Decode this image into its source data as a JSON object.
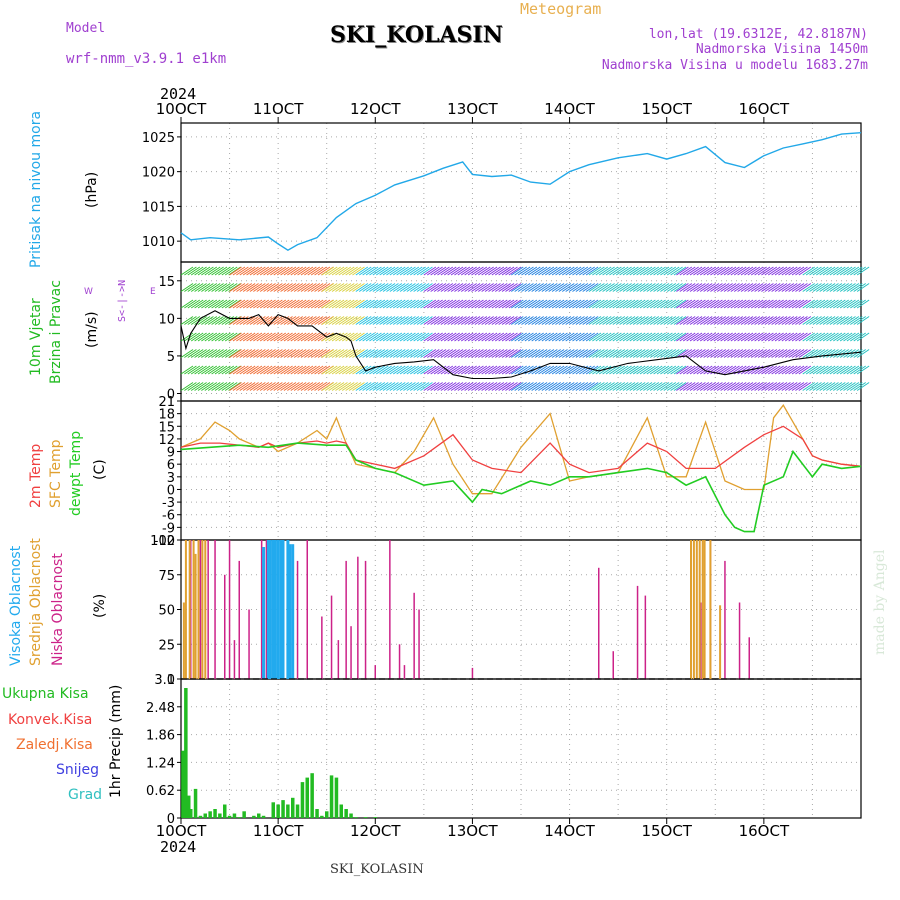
{
  "header": {
    "model_label": "Model",
    "model_name": "wrf-nmm_v3.9.1 e1km",
    "product": "Meteogram",
    "station": "SKI_KOLASIN",
    "lonlat": "lon,lat (19.6312E, 42.8187N)",
    "elevation": "Nadmorska Visina 1450m",
    "model_elevation": "Nadmorska Visina u modelu 1683.27m",
    "year_top": "2024",
    "year_bottom": "2024",
    "footer_station": "SKI_KOLASIN",
    "watermark": "made by Angel"
  },
  "colors": {
    "pressure": "#22a8e8",
    "wind_label": "#22bb22",
    "t2m": "#f04040",
    "sfc": "#e0a030",
    "dewpt": "#22cc22",
    "cloud_high": "#22aaee",
    "cloud_mid": "#e0a030",
    "cloud_low": "#cc2288",
    "precip_total": "#22bb22",
    "precip_conv": "#f04040",
    "precip_frz": "#f07030",
    "snow": "#4040e0",
    "graupel": "#30c0c0",
    "axis_purple": "#a040d0"
  },
  "panel_labels": {
    "pressure": {
      "name": "Pritisak na nivou mora",
      "unit": "(hPa)"
    },
    "wind": {
      "line1": "10m Vjetar",
      "line2": "Brzina i Pravac",
      "unit": "(m/s)",
      "compass_ns": "S<-|->N",
      "compass_w": "W",
      "compass_e": "E"
    },
    "temp": {
      "t2m": "2m Temp",
      "sfc": "SFC Temp",
      "dew": "dewpt Temp",
      "unit": "(C)"
    },
    "cloud": {
      "high": "Visoka Oblacnost",
      "mid": "Srednja Oblacnost",
      "low": "Niska Oblacnost",
      "unit": "(%)"
    },
    "precip": {
      "total": "Ukupna Kisa",
      "conv": "Konvek.Kisa",
      "frz": "Zaledj.Kisa",
      "snow": "Snijeg",
      "graupel": "Grad",
      "unit": "1hr Precip (mm)"
    }
  },
  "chart_data": [
    {
      "type": "line",
      "id": "pressure",
      "x_unit": "days from 10OCT 00z",
      "x_ticks": [
        "10OCT",
        "11OCT",
        "12OCT",
        "13OCT",
        "14OCT",
        "15OCT",
        "16OCT"
      ],
      "y_ticks": [
        1010,
        1015,
        1020,
        1025
      ],
      "ylim": [
        1007,
        1027
      ],
      "grid": true,
      "series": [
        {
          "name": "Pritisak na nivou mora",
          "x": [
            0,
            0.1,
            0.3,
            0.6,
            0.9,
            1.0,
            1.1,
            1.2,
            1.4,
            1.6,
            1.8,
            2.0,
            2.2,
            2.5,
            2.7,
            2.9,
            3.0,
            3.2,
            3.4,
            3.6,
            3.8,
            4.0,
            4.2,
            4.5,
            4.8,
            5.0,
            5.2,
            5.4,
            5.6,
            5.8,
            6.0,
            6.2,
            6.4,
            6.6,
            6.8,
            7.0
          ],
          "y": [
            1011.2,
            1010.2,
            1010.5,
            1010.2,
            1010.6,
            1009.6,
            1008.7,
            1009.5,
            1010.5,
            1013.4,
            1015.4,
            1016.6,
            1018.1,
            1019.4,
            1020.5,
            1021.4,
            1019.6,
            1019.3,
            1019.5,
            1018.5,
            1018.2,
            1020.0,
            1021.0,
            1022.0,
            1022.6,
            1021.8,
            1022.6,
            1023.6,
            1021.3,
            1020.6,
            1022.3,
            1023.4,
            1024.0,
            1024.6,
            1025.4,
            1025.6
          ]
        }
      ]
    },
    {
      "type": "line",
      "id": "wind",
      "y_ticks": [
        0,
        5,
        10,
        15
      ],
      "ylim": [
        -1,
        17.5
      ],
      "grid": true,
      "series": [
        {
          "name": "Brzina",
          "x": [
            0,
            0.05,
            0.1,
            0.2,
            0.35,
            0.5,
            0.7,
            0.8,
            0.9,
            1.0,
            1.1,
            1.2,
            1.35,
            1.5,
            1.6,
            1.7,
            1.75,
            1.8,
            1.9,
            2.0,
            2.2,
            2.4,
            2.6,
            2.8,
            3.0,
            3.2,
            3.4,
            3.6,
            3.8,
            4.0,
            4.3,
            4.6,
            4.9,
            5.2,
            5.4,
            5.6,
            5.8,
            6.0,
            6.3,
            6.6,
            7.0
          ],
          "y": [
            9,
            6,
            8,
            10,
            11,
            10,
            10,
            10.5,
            9,
            10.5,
            10,
            9,
            9,
            7.5,
            8,
            7.5,
            7,
            5,
            3,
            3.5,
            4,
            4.2,
            4.5,
            2.5,
            2,
            2,
            2.2,
            3,
            4,
            4,
            3,
            4,
            4.5,
            5,
            3,
            2.5,
            3,
            3.5,
            4.5,
            5,
            5.5
          ]
        }
      ],
      "barb_bands": [
        {
          "from": 0,
          "to": 0.5,
          "color": "#30c030"
        },
        {
          "from": 0.5,
          "to": 1.45,
          "color": "#f06a30"
        },
        {
          "from": 1.45,
          "to": 1.8,
          "color": "#d8d040"
        },
        {
          "from": 1.8,
          "to": 2.5,
          "color": "#20c0e0"
        },
        {
          "from": 2.5,
          "to": 3.4,
          "color": "#8030e0"
        },
        {
          "from": 3.4,
          "to": 4.2,
          "color": "#2080e0"
        },
        {
          "from": 4.2,
          "to": 5.1,
          "color": "#20c0c0"
        },
        {
          "from": 5.1,
          "to": 6.4,
          "color": "#8030e0"
        },
        {
          "from": 6.4,
          "to": 7.0,
          "color": "#20c0c0"
        }
      ]
    },
    {
      "type": "line",
      "id": "temperature",
      "y_ticks": [
        -12,
        -9,
        -6,
        -3,
        0,
        3,
        6,
        9,
        12,
        15,
        18,
        21
      ],
      "ylim": [
        -12,
        21
      ],
      "grid": true,
      "series": [
        {
          "name": "2m Temp",
          "x": [
            0,
            0.2,
            0.4,
            0.6,
            0.8,
            0.9,
            1.0,
            1.2,
            1.4,
            1.5,
            1.6,
            1.7,
            1.8,
            2.0,
            2.2,
            2.5,
            2.8,
            3.0,
            3.2,
            3.5,
            3.8,
            4.0,
            4.2,
            4.5,
            4.8,
            5.0,
            5.2,
            5.5,
            5.8,
            6.0,
            6.2,
            6.4,
            6.5,
            6.6,
            6.8,
            7.0
          ],
          "y": [
            10,
            11,
            11,
            10.5,
            10,
            11,
            10,
            11,
            11.5,
            11,
            11.5,
            11,
            7,
            6,
            5,
            8,
            13,
            7,
            5,
            4,
            11,
            6,
            4,
            5,
            11,
            9,
            5,
            5,
            10,
            13,
            15,
            12,
            8,
            7,
            6,
            5.5
          ]
        },
        {
          "name": "SFC Temp",
          "x": [
            0,
            0.2,
            0.35,
            0.5,
            0.6,
            0.8,
            0.9,
            1.0,
            1.2,
            1.4,
            1.5,
            1.6,
            1.7,
            1.8,
            2.0,
            2.2,
            2.4,
            2.6,
            2.8,
            3.0,
            3.2,
            3.5,
            3.8,
            4.0,
            4.2,
            4.5,
            4.8,
            5.0,
            5.2,
            5.4,
            5.6,
            5.8,
            6.0,
            6.1,
            6.2,
            6.4,
            6.5,
            6.6,
            6.8,
            7.0
          ],
          "y": [
            10,
            12,
            16,
            14,
            12,
            10,
            11,
            9,
            11,
            14,
            12,
            17,
            11,
            6,
            5,
            4,
            9,
            17,
            6,
            -1,
            -1,
            10,
            18,
            2,
            3,
            4,
            17,
            3,
            3,
            16,
            2,
            0,
            0,
            17,
            20,
            12,
            8,
            7,
            6,
            5.5
          ]
        },
        {
          "name": "dewpt Temp",
          "x": [
            0,
            0.3,
            0.6,
            0.9,
            1.2,
            1.5,
            1.7,
            1.8,
            2.0,
            2.2,
            2.5,
            2.8,
            3.0,
            3.1,
            3.3,
            3.6,
            3.8,
            4.0,
            4.2,
            4.5,
            4.8,
            5.0,
            5.2,
            5.4,
            5.6,
            5.7,
            5.8,
            5.9,
            6.0,
            6.2,
            6.3,
            6.5,
            6.6,
            6.8,
            7.0
          ],
          "y": [
            9.5,
            10,
            10.5,
            10,
            11,
            10.5,
            10.5,
            7,
            5,
            4,
            1,
            2,
            -3,
            0,
            -1,
            2,
            1,
            3,
            3,
            4,
            5,
            4,
            1,
            3,
            -6,
            -9,
            -10,
            -10,
            1,
            3,
            9,
            3,
            6,
            5,
            5.5
          ]
        }
      ]
    },
    {
      "type": "bar",
      "id": "cloud",
      "y_ticks": [
        0,
        25,
        50,
        75,
        100
      ],
      "ylim": [
        0,
        100
      ],
      "grid": true,
      "series": [
        {
          "name": "Visoka Oblacnost",
          "x": [
            0.85,
            0.9,
            0.92,
            0.95,
            0.97,
            1.0,
            1.03,
            1.05,
            1.1,
            1.12,
            1.15
          ],
          "values": [
            95,
            100,
            100,
            100,
            100,
            100,
            100,
            100,
            100,
            97,
            97
          ]
        },
        {
          "name": "Srednja Oblacnost",
          "x": [
            0.03,
            0.05,
            0.09,
            0.13,
            0.15,
            0.18,
            0.22,
            0.25,
            5.25,
            5.28,
            5.31,
            5.34,
            5.37,
            5.39,
            5.45,
            5.55
          ],
          "values": [
            55,
            100,
            100,
            100,
            90,
            100,
            100,
            100,
            100,
            100,
            100,
            100,
            100,
            100,
            100,
            53
          ]
        },
        {
          "name": "Niska Oblacnost",
          "x": [
            0.1,
            0.2,
            0.28,
            0.35,
            0.45,
            0.5,
            0.55,
            0.6,
            0.7,
            0.83,
            0.88,
            0.9,
            0.95,
            1.0,
            1.05,
            1.1,
            1.2,
            1.3,
            1.45,
            1.55,
            1.62,
            1.7,
            1.75,
            1.82,
            1.9,
            2.0,
            2.15,
            2.25,
            2.3,
            2.4,
            2.45,
            3.0,
            4.3,
            4.45,
            4.7,
            4.78,
            5.25,
            5.35,
            5.45,
            5.6,
            5.75,
            5.85
          ],
          "values": [
            100,
            100,
            100,
            100,
            75,
            100,
            28,
            85,
            50,
            100,
            100,
            100,
            100,
            100,
            88,
            100,
            85,
            100,
            45,
            60,
            28,
            85,
            38,
            88,
            85,
            10,
            100,
            25,
            10,
            62,
            50,
            8,
            80,
            20,
            67,
            60,
            100,
            55,
            100,
            85,
            55,
            30
          ]
        }
      ]
    },
    {
      "type": "bar",
      "id": "precip",
      "y_ticks": [
        0,
        0.62,
        1.24,
        1.86,
        2.48,
        3.1
      ],
      "ylim": [
        0,
        3.1
      ],
      "grid": true,
      "series": [
        {
          "name": "Ukupna Kisa",
          "x": [
            0.02,
            0.05,
            0.08,
            0.1,
            0.15,
            0.2,
            0.25,
            0.3,
            0.35,
            0.4,
            0.45,
            0.5,
            0.55,
            0.6,
            0.65,
            0.75,
            0.8,
            0.85,
            0.95,
            1.0,
            1.05,
            1.1,
            1.15,
            1.2,
            1.25,
            1.3,
            1.35,
            1.4,
            1.45,
            1.5,
            1.55,
            1.6,
            1.65,
            1.7,
            1.75,
            1.8,
            1.9,
            2.0
          ],
          "values": [
            1.5,
            2.9,
            0.5,
            0.2,
            0.65,
            0.05,
            0.1,
            0.15,
            0.2,
            0.1,
            0.3,
            0.05,
            0.1,
            0.02,
            0.15,
            0.05,
            0.1,
            0.05,
            0.35,
            0.3,
            0.4,
            0.3,
            0.45,
            0.3,
            0.8,
            0.9,
            1.0,
            0.2,
            0.05,
            0.15,
            0.95,
            0.9,
            0.3,
            0.2,
            0.1,
            0.02,
            0.02,
            0.02
          ]
        }
      ]
    }
  ]
}
